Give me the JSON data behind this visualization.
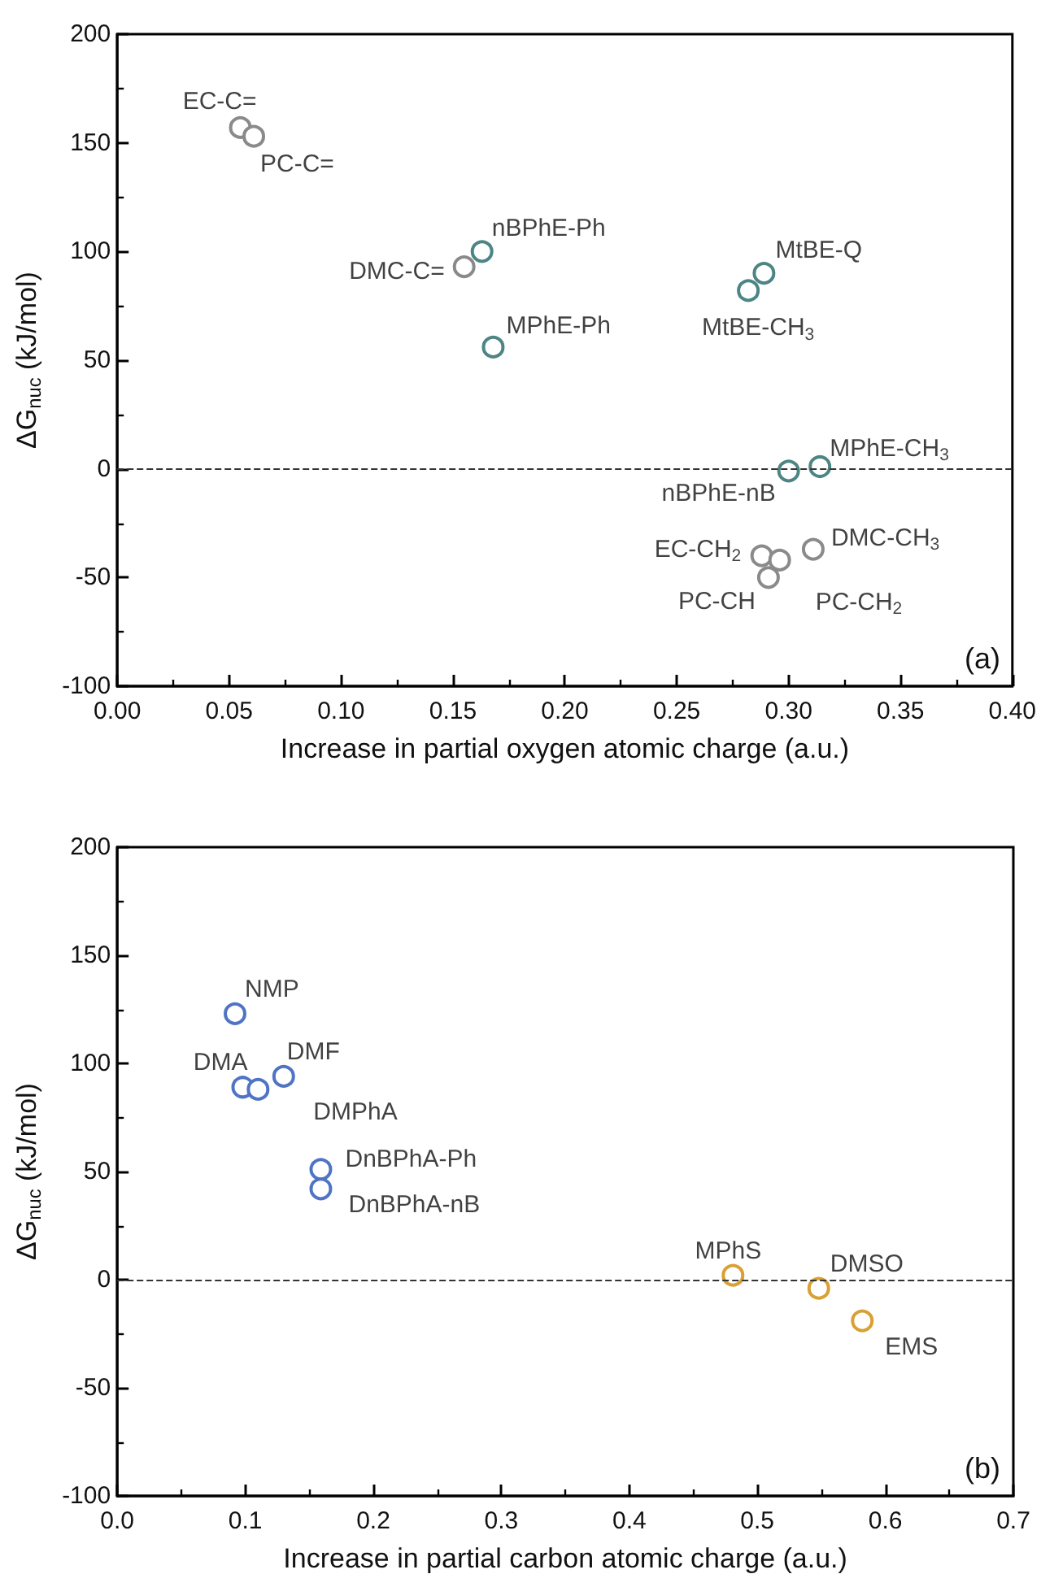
{
  "chart_data": [
    {
      "type": "scatter",
      "xlabel": "Increase in partial oxygen atomic charge (a.u.)",
      "ylabel": "ΔG$_{nuc}$ (kJ/mol)",
      "xlim": [
        0,
        0.4
      ],
      "xticks": [
        {
          "value": 0,
          "label": "0.00"
        },
        {
          "value": 0.05,
          "label": "0.05"
        },
        {
          "value": 0.1,
          "label": "0.10"
        },
        {
          "value": 0.15,
          "label": "0.15"
        },
        {
          "value": 0.2,
          "label": "0.20"
        },
        {
          "value": 0.25,
          "label": "0.25"
        },
        {
          "value": 0.3,
          "label": "0.30"
        },
        {
          "value": 0.35,
          "label": "0.35"
        },
        {
          "value": 0.4,
          "label": "0.40"
        }
      ],
      "ylim": [
        -100,
        200
      ],
      "yticks": [
        -100,
        -50,
        0,
        50,
        100,
        150,
        200
      ],
      "grid": false,
      "marker": "circle",
      "series": [
        {
          "color": "#8a8a8a",
          "x": [
            0.055,
            0.061,
            0.155,
            0.288,
            0.296,
            0.291,
            0.311
          ],
          "values": [
            157,
            153,
            93,
            -40,
            -42,
            -50,
            -37
          ]
        },
        {
          "color": "#4d8585",
          "x": [
            0.163,
            0.168,
            0.282,
            0.289,
            0.3,
            0.314
          ],
          "values": [
            100,
            56,
            82,
            90,
            -1,
            1
          ]
        }
      ],
      "ref_lines": [
        {
          "axis": "y",
          "value": 0,
          "line_style": "dashed"
        }
      ],
      "annotations": [
        {
          "text": "EC-C=",
          "x": 0.055,
          "y": 157
        },
        {
          "text": "PC-C=",
          "x": 0.061,
          "y": 153
        },
        {
          "text": "DMC-C=",
          "x": 0.155,
          "y": 93
        },
        {
          "text": "nBPhE-Ph",
          "x": 0.163,
          "y": 100
        },
        {
          "text": "MPhE-Ph",
          "x": 0.168,
          "y": 56
        },
        {
          "text": "MtBE-CH$_{3}$",
          "x": 0.282,
          "y": 82
        },
        {
          "text": "MtBE-Q",
          "x": 0.289,
          "y": 90
        },
        {
          "text": "nBPhE-nB",
          "x": 0.3,
          "y": -1
        },
        {
          "text": "MPhE-CH$_{3}$",
          "x": 0.314,
          "y": 1
        },
        {
          "text": "EC-CH$_{2}$",
          "x": 0.288,
          "y": -40
        },
        {
          "text": "PC-CH$_{2}$",
          "x": 0.296,
          "y": -42
        },
        {
          "text": "PC-CH",
          "x": 0.291,
          "y": -50
        },
        {
          "text": "DMC-CH$_{3}$",
          "x": 0.311,
          "y": -37
        },
        "(a)"
      ]
    },
    {
      "type": "scatter",
      "xlabel": "Increase in partial carbon atomic charge (a.u.)",
      "ylabel": "ΔG$_{nuc}$ (kJ/mol)",
      "xlim": [
        0,
        0.7
      ],
      "xticks": [
        {
          "value": 0,
          "label": "0.0"
        },
        {
          "value": 0.1,
          "label": "0.1"
        },
        {
          "value": 0.2,
          "label": "0.2"
        },
        {
          "value": 0.3,
          "label": "0.3"
        },
        {
          "value": 0.4,
          "label": "0.4"
        },
        {
          "value": 0.5,
          "label": "0.5"
        },
        {
          "value": 0.6,
          "label": "0.6"
        },
        {
          "value": 0.7,
          "label": "0.7"
        }
      ],
      "ylim": [
        -100,
        200
      ],
      "yticks": [
        -100,
        -50,
        0,
        50,
        100,
        150,
        200
      ],
      "grid": false,
      "marker": "circle",
      "series": [
        {
          "color": "#4f74c4",
          "x": [
            0.092,
            0.098,
            0.13,
            0.11,
            0.159,
            0.159
          ],
          "values": [
            123,
            89,
            94,
            88,
            51,
            42
          ]
        },
        {
          "color": "#d9a032",
          "x": [
            0.481,
            0.548,
            0.582
          ],
          "values": [
            2,
            -4,
            -19
          ]
        }
      ],
      "ref_lines": [
        {
          "axis": "y",
          "value": 0,
          "line_style": "dashed"
        }
      ],
      "annotations": [
        {
          "text": "NMP",
          "x": 0.092,
          "y": 123
        },
        {
          "text": "DMA",
          "x": 0.098,
          "y": 89
        },
        {
          "text": "DMF",
          "x": 0.13,
          "y": 94
        },
        {
          "text": "DMPhA",
          "x": 0.11,
          "y": 88
        },
        {
          "text": "DnBPhA-Ph",
          "x": 0.159,
          "y": 51
        },
        {
          "text": "DnBPhA-nB",
          "x": 0.159,
          "y": 42
        },
        {
          "text": "MPhS",
          "x": 0.481,
          "y": 2
        },
        {
          "text": "DMSO",
          "x": 0.548,
          "y": -4
        },
        {
          "text": "EMS",
          "x": 0.582,
          "y": -19
        },
        "(b)"
      ]
    }
  ]
}
